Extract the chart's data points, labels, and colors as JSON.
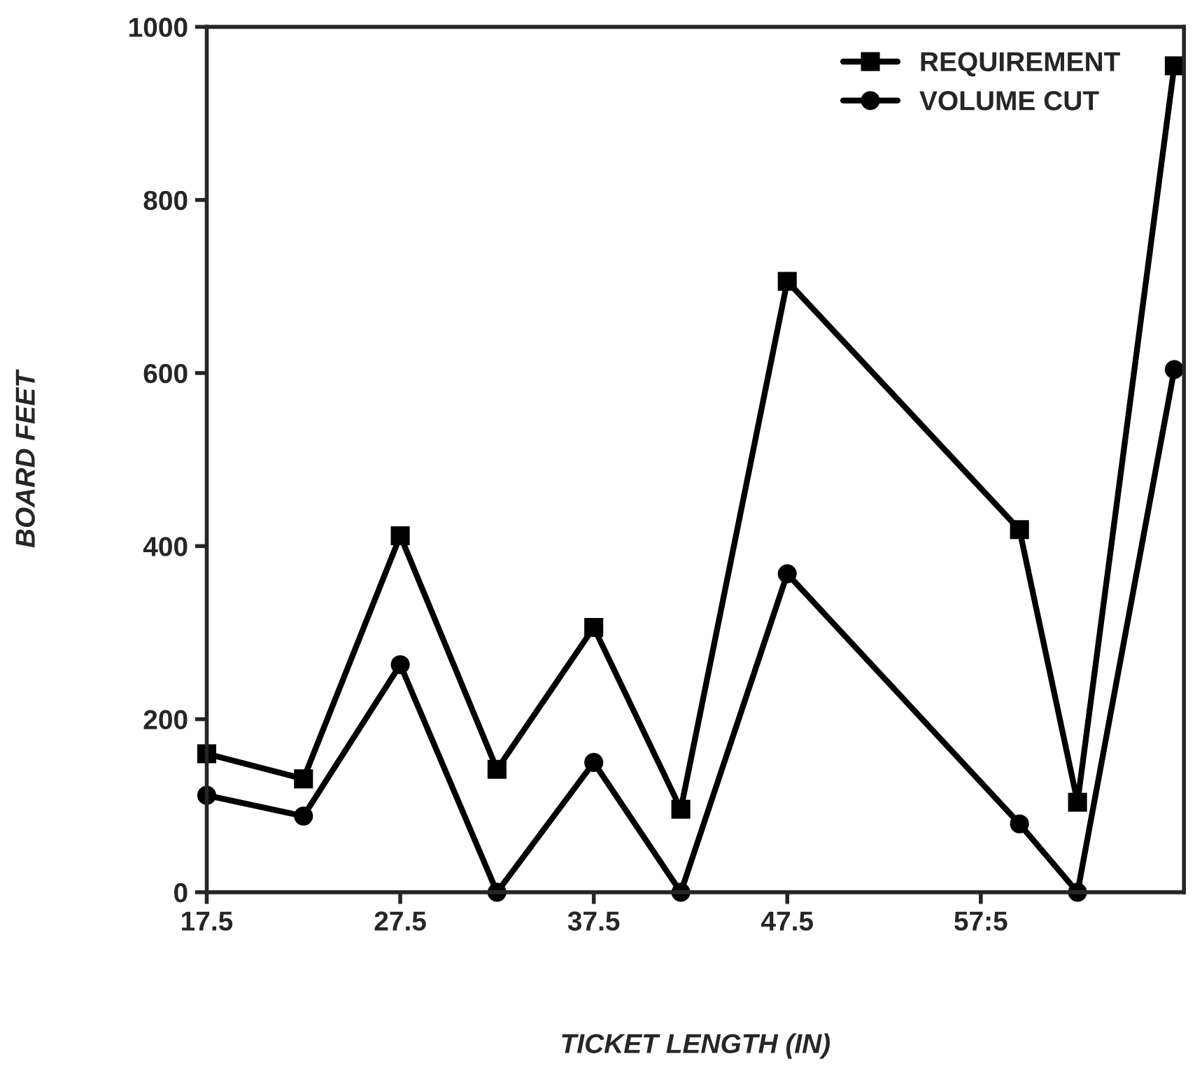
{
  "chart_data": {
    "type": "line",
    "xlabel": "TICKET LENGTH (IN)",
    "ylabel": "BOARD FEET",
    "x": [
      17.5,
      22.5,
      27.5,
      32.5,
      37.5,
      42,
      47.5,
      59.5,
      62.5,
      67.5
    ],
    "series": [
      {
        "name": "REQUIREMENT",
        "color": "#000000",
        "marker": "square",
        "values": [
          160,
          131,
          412,
          142,
          306,
          96,
          706,
          419,
          104,
          955
        ]
      },
      {
        "name": "VOLUME CUT",
        "color": "#000000",
        "marker": "circle",
        "values": [
          112,
          88,
          263,
          0,
          150,
          0,
          368,
          79,
          0,
          604
        ]
      }
    ],
    "xlim": [
      17.5,
      68
    ],
    "xticks": [
      17.5,
      27.5,
      37.5,
      47.5,
      {
        "value": 57.5,
        "label": "57:5"
      }
    ],
    "ylim": [
      0,
      1000
    ],
    "yticks": [
      0,
      200,
      400,
      600,
      800,
      1000
    ],
    "grid": false,
    "legend": "top right",
    "line_style": "solid"
  }
}
